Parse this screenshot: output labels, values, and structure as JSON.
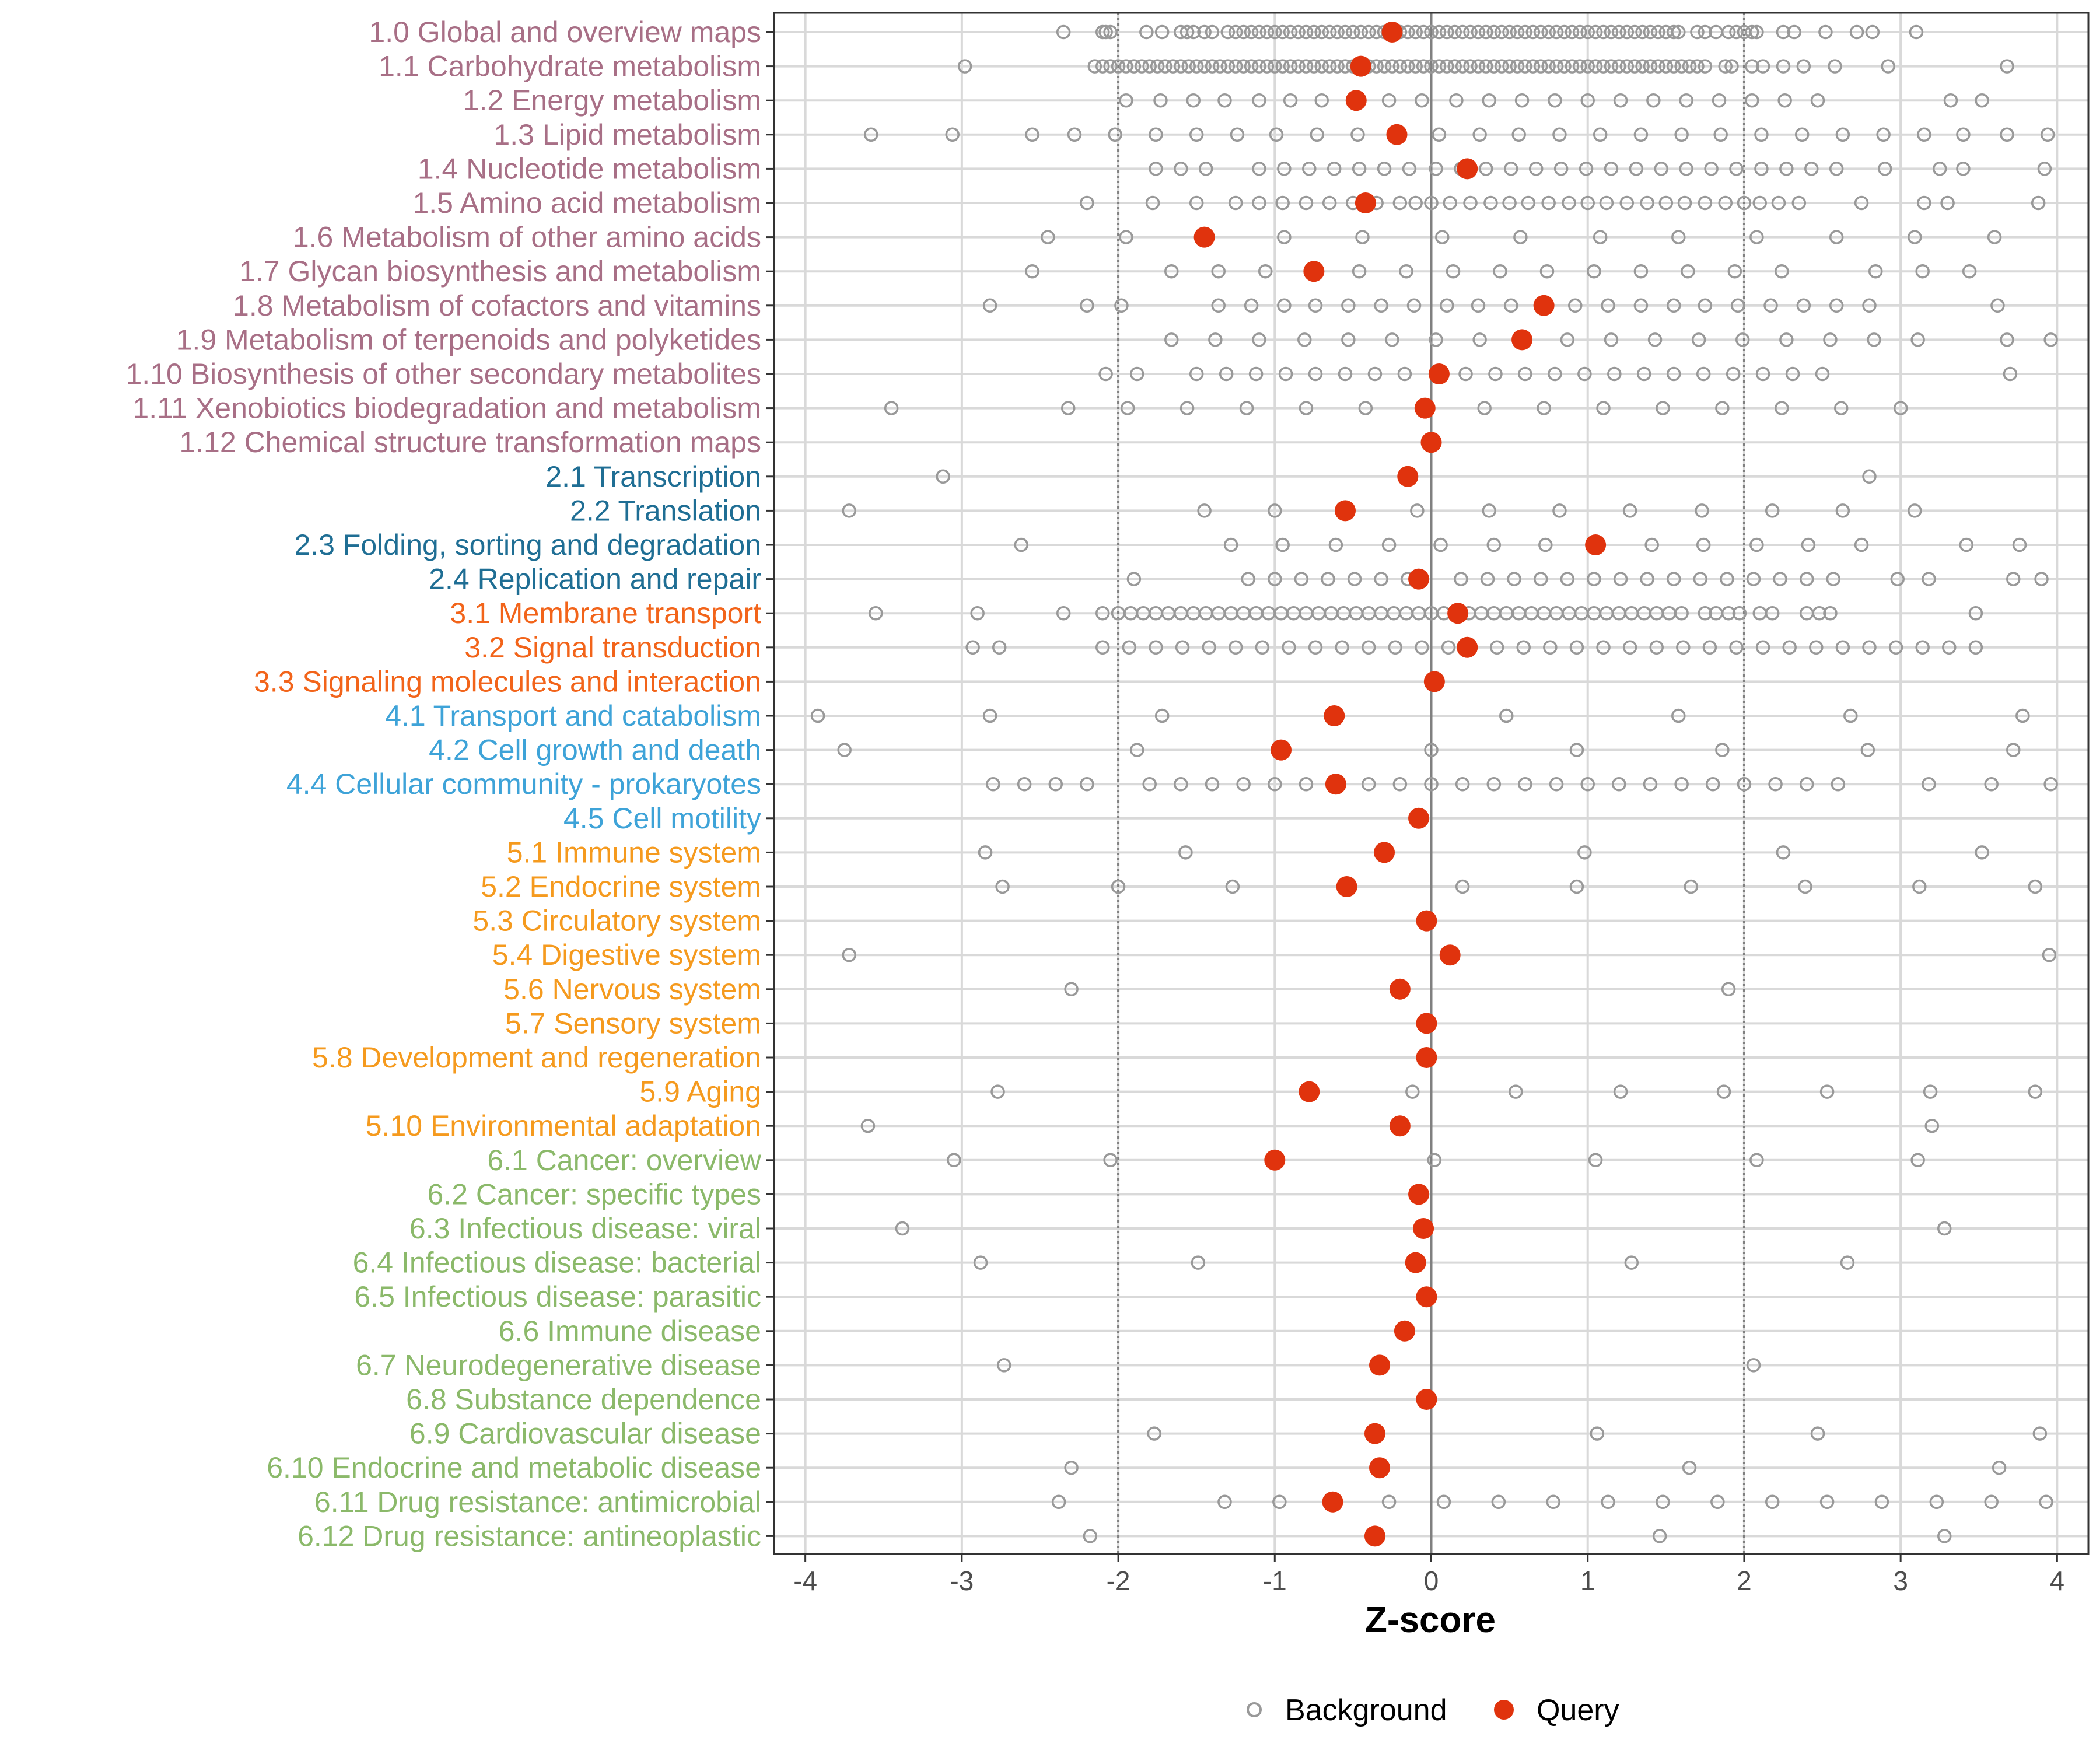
{
  "chart_data": {
    "type": "scatter",
    "xlabel": "Z-score",
    "ylabel": "",
    "xlim": [
      -4.2,
      4.2
    ],
    "xticks": [
      -4,
      -3,
      -2,
      -1,
      0,
      1,
      2,
      3,
      4
    ],
    "xtick_labels": [
      "-4",
      "-3",
      "-2",
      "-1",
      "0",
      "1",
      "2",
      "3",
      "4"
    ],
    "reference_lines": {
      "solid": [
        0
      ],
      "dotted": [
        -2,
        2
      ]
    },
    "grid": true,
    "legend": {
      "placement": "bottom",
      "entries": [
        {
          "key": "background",
          "label": "Background"
        },
        {
          "key": "query",
          "label": "Query"
        }
      ]
    },
    "colors": {
      "metabolism": "#a86f86",
      "genetic": "#1f6e94",
      "environmental": "#f2641a",
      "cellular": "#3ea3d8",
      "organismal": "#f59a1e",
      "disease": "#8bb96a",
      "query": "#e0330d",
      "background": "#999999",
      "grid": "#d9d9d9",
      "refline": "#808080"
    },
    "categories": [
      {
        "label": "1.0 Global and overview maps",
        "group": "metabolism",
        "query": -0.25,
        "background": [
          -2.35,
          -2.1,
          -2.08,
          -2.05,
          -1.82,
          -1.72,
          -1.6,
          -1.56,
          -1.52,
          -1.45,
          -1.4,
          -1.3,
          -1.25,
          -1.2,
          -1.15,
          -1.1,
          -1.05,
          -1.0,
          -0.95,
          -0.9,
          -0.85,
          -0.8,
          -0.75,
          -0.7,
          -0.65,
          -0.6,
          -0.55,
          -0.5,
          -0.45,
          -0.4,
          -0.35,
          -0.3,
          -0.2,
          -0.15,
          -0.1,
          -0.05,
          0.0,
          0.05,
          0.1,
          0.15,
          0.2,
          0.25,
          0.3,
          0.35,
          0.4,
          0.45,
          0.5,
          0.55,
          0.6,
          0.65,
          0.7,
          0.75,
          0.8,
          0.85,
          0.9,
          0.95,
          1.0,
          1.05,
          1.1,
          1.15,
          1.2,
          1.25,
          1.3,
          1.35,
          1.4,
          1.45,
          1.5,
          1.55,
          1.58,
          1.7,
          1.75,
          1.82,
          1.9,
          1.95,
          2.0,
          2.05,
          2.08,
          2.25,
          2.32,
          2.52,
          2.72,
          2.82,
          3.1
        ]
      },
      {
        "label": "1.1 Carbohydrate metabolism",
        "group": "metabolism",
        "query": -0.45,
        "background": [
          -2.98,
          -2.15,
          -2.1,
          -2.05,
          -2.0,
          -1.95,
          -1.9,
          -1.85,
          -1.8,
          -1.75,
          -1.7,
          -1.65,
          -1.6,
          -1.55,
          -1.5,
          -1.45,
          -1.4,
          -1.35,
          -1.3,
          -1.25,
          -1.2,
          -1.15,
          -1.1,
          -1.05,
          -1.0,
          -0.95,
          -0.9,
          -0.85,
          -0.8,
          -0.75,
          -0.7,
          -0.65,
          -0.6,
          -0.55,
          -0.5,
          -0.4,
          -0.35,
          -0.3,
          -0.25,
          -0.2,
          -0.15,
          -0.1,
          -0.05,
          0.0,
          0.05,
          0.1,
          0.15,
          0.2,
          0.25,
          0.3,
          0.35,
          0.4,
          0.45,
          0.5,
          0.55,
          0.6,
          0.65,
          0.7,
          0.75,
          0.8,
          0.85,
          0.9,
          0.95,
          1.0,
          1.05,
          1.1,
          1.15,
          1.2,
          1.25,
          1.3,
          1.35,
          1.4,
          1.45,
          1.5,
          1.55,
          1.6,
          1.65,
          1.7,
          1.75,
          1.88,
          1.92,
          2.05,
          2.12,
          2.25,
          2.38,
          2.58,
          2.92,
          3.68
        ]
      },
      {
        "label": "1.2 Energy metabolism",
        "group": "metabolism",
        "query": -0.48,
        "background": [
          -1.95,
          -1.73,
          -1.52,
          -1.32,
          -1.1,
          -0.9,
          -0.7,
          -0.48,
          -0.27,
          -0.06,
          0.16,
          0.37,
          0.58,
          0.79,
          1.0,
          1.21,
          1.42,
          1.63,
          1.84,
          2.05,
          2.26,
          2.47,
          3.32,
          3.52
        ]
      },
      {
        "label": "1.3 Lipid metabolism",
        "group": "metabolism",
        "query": -0.22,
        "background": [
          -3.58,
          -3.06,
          -2.55,
          -2.28,
          -2.02,
          -1.76,
          -1.5,
          -1.24,
          -0.99,
          -0.73,
          -0.47,
          -0.21,
          0.05,
          0.31,
          0.56,
          0.82,
          1.08,
          1.34,
          1.6,
          1.85,
          2.11,
          2.37,
          2.63,
          2.89,
          3.15,
          3.4,
          3.68,
          3.94
        ]
      },
      {
        "label": "1.4 Nucleotide metabolism",
        "group": "metabolism",
        "query": 0.23,
        "background": [
          -1.76,
          -1.6,
          -1.44,
          -1.1,
          -0.94,
          -0.78,
          -0.62,
          -0.46,
          -0.3,
          -0.14,
          0.03,
          0.19,
          0.35,
          0.51,
          0.67,
          0.83,
          0.99,
          1.15,
          1.31,
          1.47,
          1.63,
          1.79,
          1.95,
          2.11,
          2.27,
          2.43,
          2.59,
          2.9,
          3.25,
          3.4,
          3.92
        ]
      },
      {
        "label": "1.5 Amino acid metabolism",
        "group": "metabolism",
        "query": -0.42,
        "background": [
          -2.2,
          -1.78,
          -1.5,
          -1.25,
          -1.1,
          -0.95,
          -0.8,
          -0.65,
          -0.5,
          -0.35,
          -0.2,
          -0.1,
          0.0,
          0.12,
          0.25,
          0.38,
          0.5,
          0.62,
          0.75,
          0.88,
          1.0,
          1.12,
          1.25,
          1.38,
          1.5,
          1.62,
          1.75,
          1.88,
          2.0,
          2.1,
          2.22,
          2.35,
          2.75,
          3.15,
          3.3,
          3.88
        ]
      },
      {
        "label": "1.6 Metabolism of other amino acids",
        "group": "metabolism",
        "query": -1.45,
        "background": [
          -2.45,
          -1.95,
          -0.94,
          -0.44,
          0.07,
          0.57,
          1.08,
          1.58,
          2.08,
          2.59,
          3.09,
          3.6
        ]
      },
      {
        "label": "1.7 Glycan biosynthesis and metabolism",
        "group": "metabolism",
        "query": -0.75,
        "background": [
          -2.55,
          -1.66,
          -1.36,
          -1.06,
          -0.46,
          -0.16,
          0.14,
          0.44,
          0.74,
          1.04,
          1.34,
          1.64,
          1.94,
          2.24,
          2.84,
          3.14,
          3.44
        ]
      },
      {
        "label": "1.8 Metabolism of cofactors and vitamins",
        "group": "metabolism",
        "query": 0.72,
        "background": [
          -2.82,
          -2.2,
          -1.98,
          -1.36,
          -1.15,
          -0.94,
          -0.74,
          -0.53,
          -0.32,
          -0.11,
          0.1,
          0.3,
          0.51,
          0.92,
          1.13,
          1.34,
          1.55,
          1.75,
          1.96,
          2.17,
          2.38,
          2.59,
          2.8,
          3.62
        ]
      },
      {
        "label": "1.9 Metabolism of terpenoids and polyketides",
        "group": "metabolism",
        "query": 0.58,
        "background": [
          -1.66,
          -1.38,
          -1.1,
          -0.81,
          -0.53,
          -0.25,
          0.03,
          0.31,
          0.87,
          1.15,
          1.43,
          1.71,
          1.99,
          2.27,
          2.55,
          2.83,
          3.11,
          3.68,
          3.96
        ]
      },
      {
        "label": "1.10 Biosynthesis of other secondary metabolites",
        "group": "metabolism",
        "query": 0.05,
        "background": [
          -2.08,
          -1.88,
          -1.5,
          -1.31,
          -1.12,
          -0.93,
          -0.74,
          -0.55,
          -0.36,
          -0.17,
          0.22,
          0.41,
          0.6,
          0.79,
          0.98,
          1.17,
          1.36,
          1.55,
          1.74,
          1.93,
          2.12,
          2.31,
          2.5,
          3.7
        ]
      },
      {
        "label": "1.11 Xenobiotics biodegradation and metabolism",
        "group": "metabolism",
        "query": -0.04,
        "background": [
          -3.45,
          -2.32,
          -1.94,
          -1.56,
          -1.18,
          -0.8,
          -0.42,
          0.34,
          0.72,
          1.1,
          1.48,
          1.86,
          2.24,
          2.62,
          3.0
        ]
      },
      {
        "label": "1.12 Chemical structure transformation maps",
        "group": "metabolism",
        "query": 0.0,
        "background": []
      },
      {
        "label": "2.1 Transcription",
        "group": "genetic",
        "query": -0.15,
        "background": [
          -3.12,
          2.8
        ]
      },
      {
        "label": "2.2 Translation",
        "group": "genetic",
        "query": -0.55,
        "background": [
          -3.72,
          -1.45,
          -1.0,
          -0.09,
          0.37,
          0.82,
          1.27,
          1.73,
          2.18,
          2.63,
          3.09
        ]
      },
      {
        "label": "2.3 Folding, sorting and degradation",
        "group": "genetic",
        "query": 1.05,
        "background": [
          -2.62,
          -1.28,
          -0.95,
          -0.61,
          -0.27,
          0.06,
          0.4,
          0.73,
          1.41,
          1.74,
          2.08,
          2.41,
          2.75,
          3.42,
          3.76
        ]
      },
      {
        "label": "2.4 Replication and repair",
        "group": "genetic",
        "query": -0.08,
        "background": [
          -1.9,
          -1.17,
          -1.0,
          -0.83,
          -0.66,
          -0.49,
          -0.32,
          -0.15,
          0.19,
          0.36,
          0.53,
          0.7,
          0.87,
          1.04,
          1.21,
          1.38,
          1.55,
          1.72,
          1.89,
          2.06,
          2.23,
          2.4,
          2.57,
          2.98,
          3.18,
          3.72,
          3.9
        ]
      },
      {
        "label": "3.1 Membrane transport",
        "group": "environmental",
        "query": 0.17,
        "background": [
          -3.55,
          -2.9,
          -2.35,
          -2.1,
          -2.0,
          -1.92,
          -1.84,
          -1.76,
          -1.68,
          -1.6,
          -1.52,
          -1.44,
          -1.36,
          -1.28,
          -1.2,
          -1.12,
          -1.04,
          -0.96,
          -0.88,
          -0.8,
          -0.72,
          -0.64,
          -0.56,
          -0.48,
          -0.4,
          -0.32,
          -0.24,
          -0.16,
          -0.08,
          0.0,
          0.08,
          0.24,
          0.32,
          0.4,
          0.48,
          0.56,
          0.64,
          0.72,
          0.8,
          0.88,
          0.96,
          1.04,
          1.12,
          1.2,
          1.28,
          1.36,
          1.44,
          1.52,
          1.6,
          1.75,
          1.82,
          1.9,
          1.97,
          2.1,
          2.18,
          2.4,
          2.48,
          2.55,
          3.48
        ]
      },
      {
        "label": "3.2 Signal transduction",
        "group": "environmental",
        "query": 0.23,
        "background": [
          -2.93,
          -2.76,
          -2.1,
          -1.93,
          -1.76,
          -1.59,
          -1.42,
          -1.25,
          -1.08,
          -0.91,
          -0.74,
          -0.57,
          -0.4,
          -0.23,
          -0.06,
          0.11,
          0.42,
          0.59,
          0.76,
          0.93,
          1.1,
          1.27,
          1.44,
          1.61,
          1.78,
          1.95,
          2.12,
          2.29,
          2.46,
          2.63,
          2.8,
          2.97,
          3.14,
          3.31,
          3.48
        ]
      },
      {
        "label": "3.3 Signaling molecules and interaction",
        "group": "environmental",
        "query": 0.02,
        "background": []
      },
      {
        "label": "4.1 Transport and catabolism",
        "group": "cellular",
        "query": -0.62,
        "background": [
          -3.92,
          -2.82,
          -1.72,
          0.48,
          1.58,
          2.68,
          3.78
        ]
      },
      {
        "label": "4.2 Cell growth and death",
        "group": "cellular",
        "query": -0.96,
        "background": [
          -3.75,
          -1.88,
          0.0,
          0.93,
          1.86,
          2.79,
          3.72
        ]
      },
      {
        "label": "4.4 Cellular community - prokaryotes",
        "group": "cellular",
        "query": -0.61,
        "background": [
          -2.8,
          -2.6,
          -2.4,
          -2.2,
          -1.8,
          -1.6,
          -1.4,
          -1.2,
          -1.0,
          -0.8,
          -0.4,
          -0.2,
          0.0,
          0.2,
          0.4,
          0.6,
          0.8,
          1.0,
          1.2,
          1.4,
          1.6,
          1.8,
          2.0,
          2.2,
          2.4,
          2.6,
          3.18,
          3.58,
          3.96
        ]
      },
      {
        "label": "4.5 Cell motility",
        "group": "cellular",
        "query": -0.08,
        "background": []
      },
      {
        "label": "5.1 Immune system",
        "group": "organismal",
        "query": -0.3,
        "background": [
          -2.85,
          -1.57,
          0.98,
          2.25,
          3.52
        ]
      },
      {
        "label": "5.2 Endocrine system",
        "group": "organismal",
        "query": -0.54,
        "background": [
          -2.74,
          -2.0,
          -1.27,
          0.2,
          0.93,
          1.66,
          2.39,
          3.12,
          3.86
        ]
      },
      {
        "label": "5.3 Circulatory system",
        "group": "organismal",
        "query": -0.03,
        "background": []
      },
      {
        "label": "5.4 Digestive system",
        "group": "organismal",
        "query": 0.12,
        "background": [
          -3.72,
          3.95
        ]
      },
      {
        "label": "5.6 Nervous system",
        "group": "organismal",
        "query": -0.2,
        "background": [
          -2.3,
          1.9
        ]
      },
      {
        "label": "5.7 Sensory system",
        "group": "organismal",
        "query": -0.03,
        "background": []
      },
      {
        "label": "5.8 Development and regeneration",
        "group": "organismal",
        "query": -0.03,
        "background": []
      },
      {
        "label": "5.9 Aging",
        "group": "organismal",
        "query": -0.78,
        "background": [
          -2.77,
          -0.12,
          0.54,
          1.21,
          1.87,
          2.53,
          3.19,
          3.86
        ]
      },
      {
        "label": "5.10 Environmental adaptation",
        "group": "organismal",
        "query": -0.2,
        "background": [
          -3.6,
          3.2
        ]
      },
      {
        "label": "6.1 Cancer: overview",
        "group": "disease",
        "query": -1.0,
        "background": [
          -3.05,
          -2.05,
          0.02,
          1.05,
          2.08,
          3.11
        ]
      },
      {
        "label": "6.2 Cancer: specific types",
        "group": "disease",
        "query": -0.08,
        "background": []
      },
      {
        "label": "6.3 Infectious disease: viral",
        "group": "disease",
        "query": -0.05,
        "background": [
          -3.38,
          3.28
        ]
      },
      {
        "label": "6.4 Infectious disease: bacterial",
        "group": "disease",
        "query": -0.1,
        "background": [
          -2.88,
          -1.49,
          1.28,
          2.66
        ]
      },
      {
        "label": "6.5 Infectious disease: parasitic",
        "group": "disease",
        "query": -0.03,
        "background": []
      },
      {
        "label": "6.6 Immune disease",
        "group": "disease",
        "query": -0.17,
        "background": []
      },
      {
        "label": "6.7 Neurodegenerative disease",
        "group": "disease",
        "query": -0.33,
        "background": [
          -2.73,
          2.06
        ]
      },
      {
        "label": "6.8 Substance dependence",
        "group": "disease",
        "query": -0.03,
        "background": []
      },
      {
        "label": "6.9 Cardiovascular disease",
        "group": "disease",
        "query": -0.36,
        "background": [
          -1.77,
          1.06,
          2.47,
          3.89
        ]
      },
      {
        "label": "6.10 Endocrine and metabolic disease",
        "group": "disease",
        "query": -0.33,
        "background": [
          -2.3,
          1.65,
          3.63
        ]
      },
      {
        "label": "6.11 Drug resistance: antimicrobial",
        "group": "disease",
        "query": -0.63,
        "background": [
          -2.38,
          -1.32,
          -0.97,
          -0.27,
          0.08,
          0.43,
          0.78,
          1.13,
          1.48,
          1.83,
          2.18,
          2.53,
          2.88,
          3.23,
          3.58,
          3.93
        ]
      },
      {
        "label": "6.12 Drug resistance: antineoplastic",
        "group": "disease",
        "query": -0.36,
        "background": [
          -2.18,
          1.46,
          3.28
        ]
      }
    ]
  }
}
